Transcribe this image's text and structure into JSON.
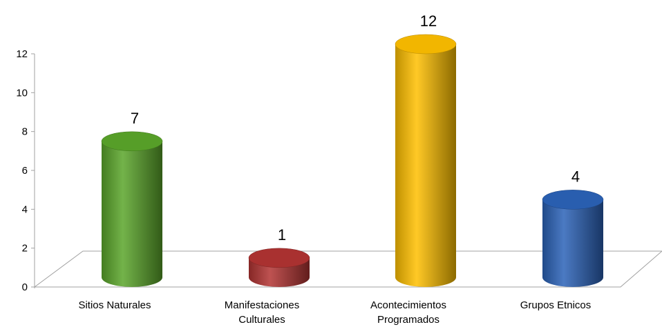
{
  "chart_data": {
    "type": "bar",
    "style": "3d-cylinder",
    "categories": [
      [
        "Sitios Naturales"
      ],
      [
        "Manifestaciones",
        "Culturales"
      ],
      [
        "Acontecimientos",
        "Programados"
      ],
      [
        "Grupos Etnicos"
      ]
    ],
    "values": [
      7,
      1,
      12,
      4
    ],
    "colors": [
      "#5aa62a",
      "#b23432",
      "#ffc000",
      "#2b63b8"
    ],
    "data_labels": [
      "7",
      "1",
      "12",
      "4"
    ],
    "y_ticks": [
      "0",
      "2",
      "4",
      "6",
      "8",
      "10",
      "12"
    ],
    "ylim": [
      0,
      12
    ],
    "grid": false,
    "legend": "none",
    "title": "",
    "xlabel": "",
    "ylabel": ""
  }
}
